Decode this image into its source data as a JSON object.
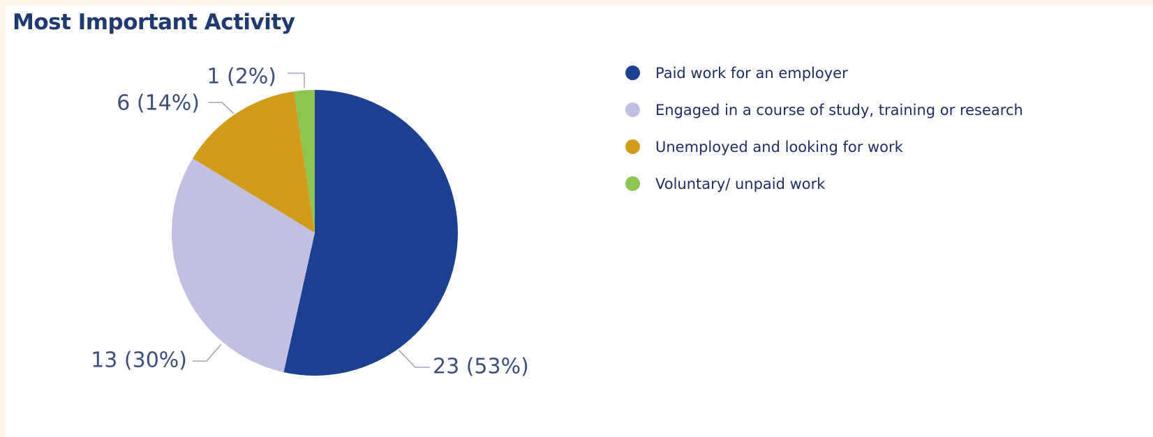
{
  "chart_data": {
    "type": "pie",
    "title": "Most Important Activity",
    "slices": [
      {
        "label": "Paid work for an employer",
        "value": 23,
        "percent": 53,
        "data_label": "23 (53%)",
        "color": "#1d4190"
      },
      {
        "label": "Engaged in a course of study, training or research",
        "value": 13,
        "percent": 30,
        "data_label": "13 (30%)",
        "color": "#c1c0e2"
      },
      {
        "label": "Unemployed and looking for work",
        "value": 6,
        "percent": 14,
        "data_label": "6 (14%)",
        "color": "#d19b1b"
      },
      {
        "label": "Voluntary/ unpaid work",
        "value": 1,
        "percent": 2,
        "data_label": "1 (2%)",
        "color": "#8cc54f"
      }
    ],
    "legend_position": "right"
  }
}
